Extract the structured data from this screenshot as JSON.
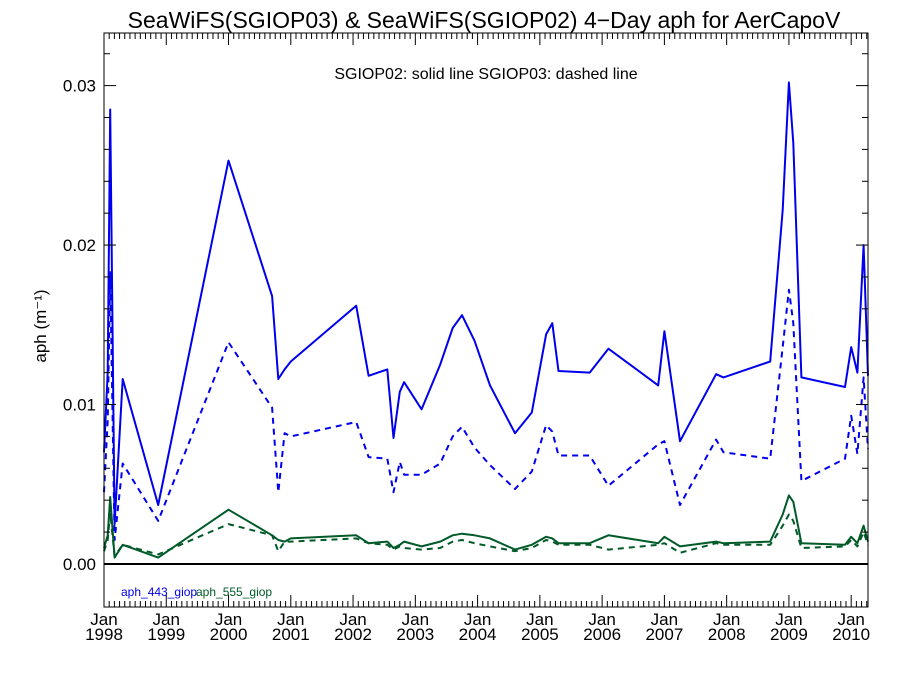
{
  "chart_data": {
    "type": "line",
    "title": "SeaWiFS(SGIOP03) & SeaWiFS(SGIOP02) 4−Day aph for AerCapoV",
    "annotation": "SGIOP02: solid line   SGIOP03: dashed line",
    "ylabel": "aph (m⁻¹)",
    "xlabel": "",
    "xlim": [
      1998.0,
      2010.27
    ],
    "ylim": [
      -0.0027,
      0.0333
    ],
    "y_ticks": [
      {
        "value": 0.0,
        "label": "0.00"
      },
      {
        "value": 0.01,
        "label": "0.01"
      },
      {
        "value": 0.02,
        "label": "0.02"
      },
      {
        "value": 0.03,
        "label": "0.03"
      }
    ],
    "x_ticks": [
      {
        "value": 1998,
        "month": "Jan",
        "year": "1998"
      },
      {
        "value": 1999,
        "month": "Jan",
        "year": "1999"
      },
      {
        "value": 2000,
        "month": "Jan",
        "year": "2000"
      },
      {
        "value": 2001,
        "month": "Jan",
        "year": "2001"
      },
      {
        "value": 2002,
        "month": "Jan",
        "year": "2002"
      },
      {
        "value": 2003,
        "month": "Jan",
        "year": "2003"
      },
      {
        "value": 2004,
        "month": "Jan",
        "year": "2004"
      },
      {
        "value": 2005,
        "month": "Jan",
        "year": "2005"
      },
      {
        "value": 2006,
        "month": "Jan",
        "year": "2006"
      },
      {
        "value": 2007,
        "month": "Jan",
        "year": "2007"
      },
      {
        "value": 2008,
        "month": "Jan",
        "year": "2008"
      },
      {
        "value": 2009,
        "month": "Jan",
        "year": "2009"
      },
      {
        "value": 2010,
        "month": "Jan",
        "year": "2010"
      }
    ],
    "zero_line": 0.0,
    "legend": [
      {
        "label": "aph_443_giop",
        "color": "#0000ee"
      },
      {
        "label": "aph_555_giop",
        "color": "#005a28"
      }
    ],
    "legend_placement": "bottom-left",
    "series": [
      {
        "name": "aph_443_giop",
        "dataset": "SGIOP02",
        "color": "#0000ee",
        "dash": "solid",
        "x": [
          1998.0,
          1998.06,
          1998.1,
          1998.17,
          1998.3,
          1998.87,
          2000.0,
          2000.7,
          2000.8,
          2000.9,
          2001.0,
          2002.05,
          2002.25,
          2002.55,
          2002.65,
          2002.75,
          2002.82,
          2003.1,
          2003.4,
          2003.6,
          2003.75,
          2003.95,
          2004.2,
          2004.6,
          2004.87,
          2005.1,
          2005.2,
          2005.3,
          2005.8,
          2006.1,
          2006.9,
          2007.0,
          2007.25,
          2007.83,
          2007.95,
          2008.7,
          2008.9,
          2009.0,
          2009.07,
          2009.2,
          2009.9,
          2010.0,
          2010.1,
          2010.2,
          2010.27
        ],
        "y": [
          0.007,
          0.012,
          0.0285,
          0.0025,
          0.0116,
          0.0037,
          0.0253,
          0.0168,
          0.0116,
          0.0122,
          0.0127,
          0.0162,
          0.0118,
          0.0122,
          0.0079,
          0.0108,
          0.0114,
          0.0097,
          0.0125,
          0.0148,
          0.0156,
          0.014,
          0.0112,
          0.0082,
          0.0095,
          0.0144,
          0.0151,
          0.0121,
          0.012,
          0.0135,
          0.0112,
          0.0146,
          0.0077,
          0.0119,
          0.0117,
          0.0127,
          0.0222,
          0.0302,
          0.0264,
          0.0117,
          0.0111,
          0.0136,
          0.012,
          0.02,
          0.0118
        ]
      },
      {
        "name": "aph_443_giop",
        "dataset": "SGIOP03",
        "color": "#0000ee",
        "dash": "dashed",
        "x": [
          1998.0,
          1998.06,
          1998.1,
          1998.17,
          1998.3,
          1998.87,
          2000.0,
          2000.7,
          2000.8,
          2000.9,
          2001.0,
          2002.05,
          2002.25,
          2002.55,
          2002.65,
          2002.75,
          2002.82,
          2003.1,
          2003.4,
          2003.6,
          2003.75,
          2003.95,
          2004.2,
          2004.6,
          2004.87,
          2005.1,
          2005.2,
          2005.3,
          2005.8,
          2006.1,
          2006.9,
          2007.0,
          2007.25,
          2007.83,
          2007.95,
          2008.7,
          2008.9,
          2009.0,
          2009.07,
          2009.2,
          2009.9,
          2010.0,
          2010.1,
          2010.2,
          2010.27
        ],
        "y": [
          0.0045,
          0.009,
          0.0183,
          0.0015,
          0.0063,
          0.0027,
          0.0139,
          0.0098,
          0.0045,
          0.0082,
          0.008,
          0.0089,
          0.0067,
          0.0066,
          0.0045,
          0.0064,
          0.0056,
          0.0056,
          0.0063,
          0.008,
          0.0086,
          0.0073,
          0.0062,
          0.0047,
          0.0058,
          0.0087,
          0.0083,
          0.0068,
          0.0068,
          0.0049,
          0.0075,
          0.0077,
          0.0037,
          0.0078,
          0.007,
          0.0066,
          0.0136,
          0.0172,
          0.0151,
          0.0052,
          0.0066,
          0.0093,
          0.0069,
          0.0117,
          0.0072
        ]
      },
      {
        "name": "aph_555_giop",
        "dataset": "SGIOP02",
        "color": "#005a28",
        "dash": "solid",
        "x": [
          1998.0,
          1998.06,
          1998.1,
          1998.17,
          1998.3,
          1998.87,
          2000.0,
          2000.7,
          2000.8,
          2000.9,
          2001.0,
          2002.05,
          2002.25,
          2002.55,
          2002.65,
          2002.75,
          2002.82,
          2003.1,
          2003.4,
          2003.6,
          2003.75,
          2003.95,
          2004.2,
          2004.6,
          2004.87,
          2005.1,
          2005.2,
          2005.3,
          2005.8,
          2006.1,
          2006.9,
          2007.0,
          2007.25,
          2007.83,
          2007.95,
          2008.7,
          2008.9,
          2009.0,
          2009.07,
          2009.2,
          2009.9,
          2010.0,
          2010.1,
          2010.2,
          2010.27
        ],
        "y": [
          0.001,
          0.0018,
          0.0042,
          0.0004,
          0.0012,
          0.0004,
          0.0034,
          0.0018,
          0.0015,
          0.0014,
          0.0016,
          0.0018,
          0.0013,
          0.0014,
          0.001,
          0.0012,
          0.0014,
          0.0011,
          0.0014,
          0.0018,
          0.0019,
          0.0018,
          0.0016,
          0.0009,
          0.0012,
          0.0017,
          0.0016,
          0.0013,
          0.0013,
          0.0018,
          0.0013,
          0.0017,
          0.0011,
          0.0014,
          0.0013,
          0.0014,
          0.0031,
          0.0043,
          0.0039,
          0.0013,
          0.0012,
          0.0017,
          0.0013,
          0.0024,
          0.0014
        ]
      },
      {
        "name": "aph_555_giop",
        "dataset": "SGIOP03",
        "color": "#005a28",
        "dash": "dashed",
        "x": [
          1998.0,
          1998.06,
          1998.1,
          1998.17,
          1998.3,
          1998.87,
          2000.0,
          2000.7,
          2000.8,
          2000.9,
          2001.0,
          2002.05,
          2002.25,
          2002.55,
          2002.65,
          2002.75,
          2002.82,
          2003.1,
          2003.4,
          2003.6,
          2003.75,
          2003.95,
          2004.2,
          2004.6,
          2004.87,
          2005.1,
          2005.2,
          2005.3,
          2005.8,
          2006.1,
          2006.9,
          2007.0,
          2007.25,
          2007.83,
          2007.95,
          2008.7,
          2008.9,
          2009.0,
          2009.07,
          2009.2,
          2009.9,
          2010.0,
          2010.1,
          2010.2,
          2010.27
        ],
        "y": [
          0.0008,
          0.0015,
          0.0032,
          0.0005,
          0.0012,
          0.0006,
          0.0025,
          0.0018,
          0.0008,
          0.0014,
          0.0014,
          0.0016,
          0.0013,
          0.0012,
          0.0009,
          0.0011,
          0.001,
          0.0009,
          0.001,
          0.0014,
          0.0015,
          0.0013,
          0.0011,
          0.0008,
          0.001,
          0.0015,
          0.0014,
          0.0012,
          0.0012,
          0.0009,
          0.0012,
          0.0013,
          0.0007,
          0.0013,
          0.0012,
          0.0012,
          0.0024,
          0.0031,
          0.0027,
          0.001,
          0.0011,
          0.0015,
          0.0011,
          0.002,
          0.0012
        ]
      }
    ]
  }
}
